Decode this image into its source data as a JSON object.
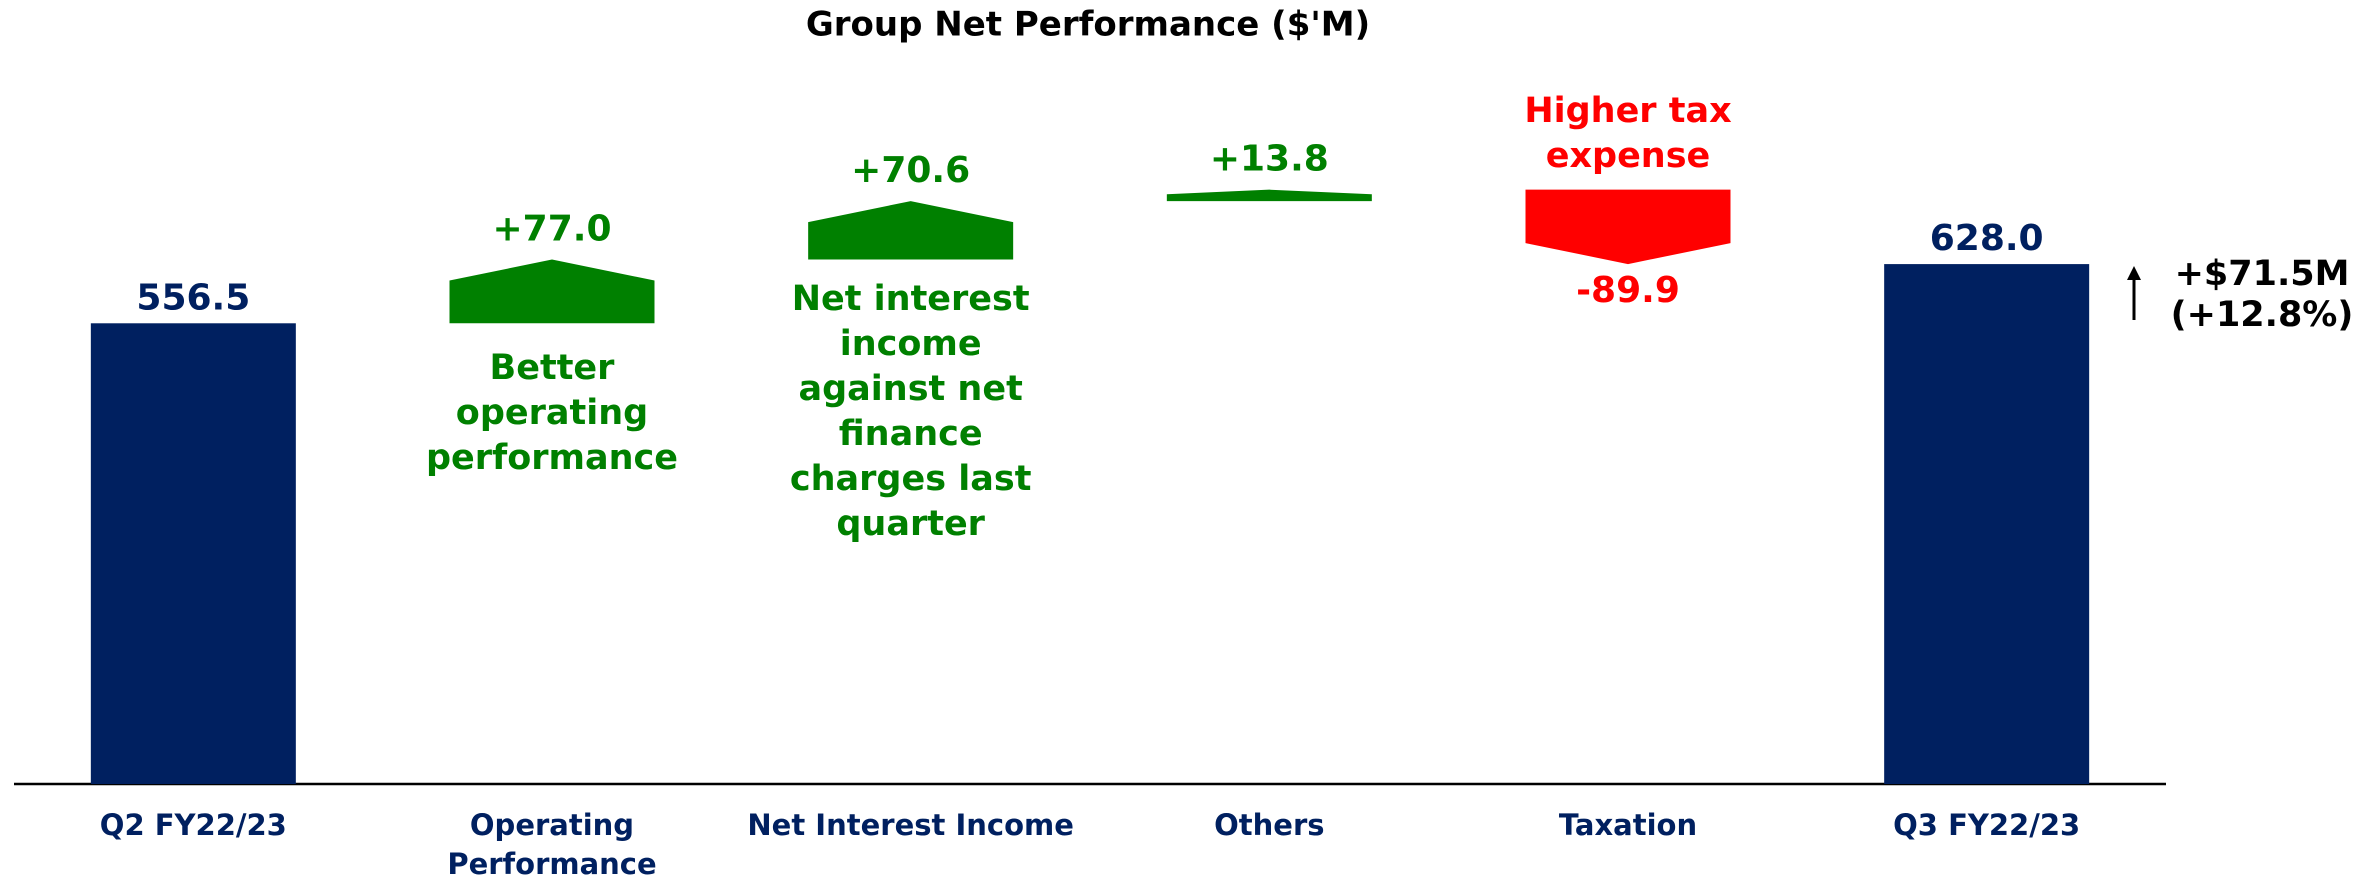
{
  "chart_data": {
    "type": "waterfall",
    "title": "Group Net Performance ($'M)",
    "categories": [
      "Q2 FY22/23",
      "Operating Performance",
      "Net Interest Income",
      "Others",
      "Taxation",
      "Q3 FY22/23"
    ],
    "measures": [
      "absolute",
      "relative",
      "relative",
      "relative",
      "relative",
      "total"
    ],
    "values": [
      556.5,
      77.0,
      70.6,
      13.8,
      -89.9,
      628.0
    ],
    "value_labels": [
      "556.5",
      "+77.0",
      "+70.6",
      "+13.8",
      "-89.9",
      "628.0"
    ],
    "colors": {
      "total": "#002060",
      "increase": "#008000",
      "decrease": "#ff0000"
    },
    "ylim": [
      0,
      947
    ],
    "annotations": [
      {
        "lines": [
          "Better",
          "operating",
          "performance"
        ]
      },
      {
        "lines": [
          "Net interest",
          "income",
          "against net",
          "finance",
          "charges last",
          "quarter"
        ]
      },
      {
        "lines": [
          "Higher tax",
          "expense"
        ]
      },
      {
        "lines": [
          "+$71.5M",
          "(+12.8%)"
        ]
      }
    ]
  }
}
